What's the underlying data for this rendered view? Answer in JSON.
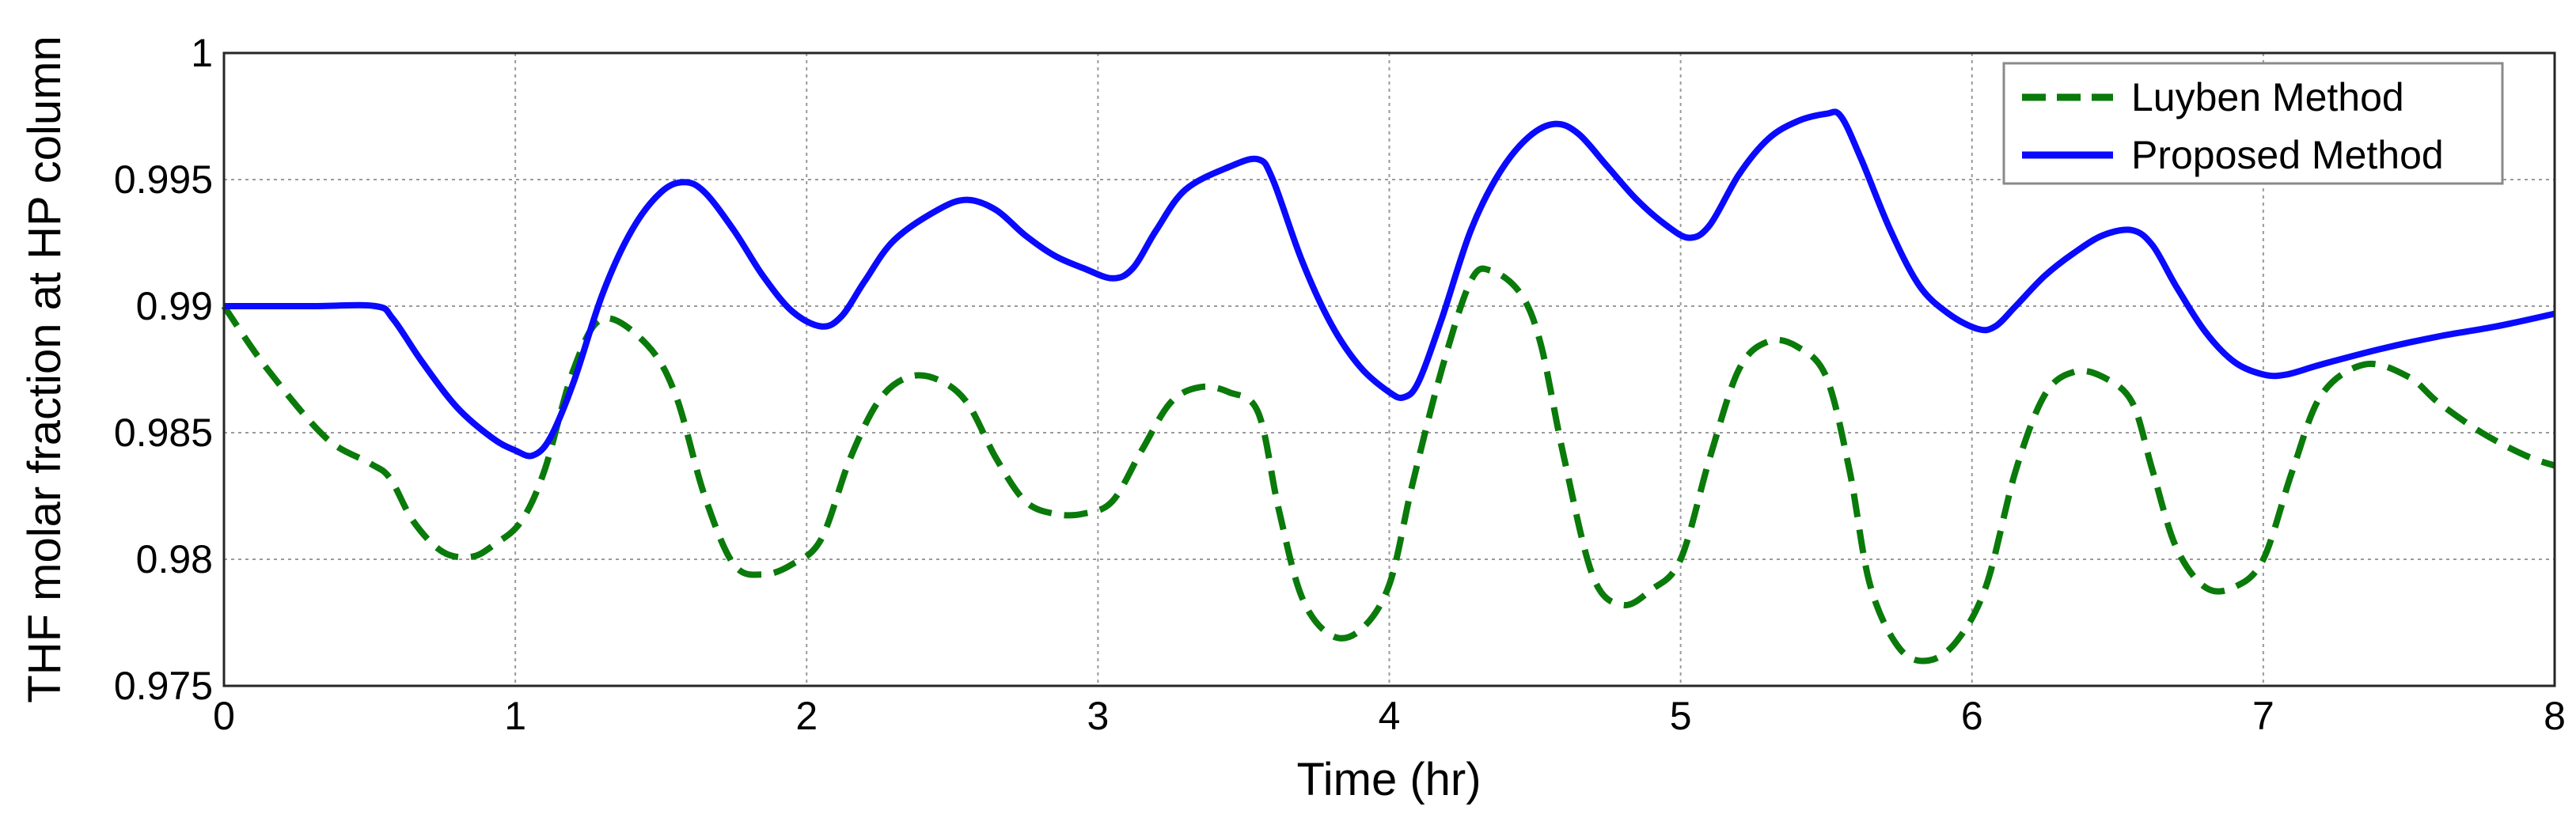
{
  "chart_data": {
    "type": "line",
    "xlabel": "Time (hr)",
    "ylabel": "THF molar fraction at HP column",
    "xlim": [
      0,
      8
    ],
    "ylim": [
      0.975,
      1
    ],
    "xticks": [
      0,
      1,
      2,
      3,
      4,
      5,
      6,
      7,
      8
    ],
    "yticks": [
      0.975,
      0.98,
      0.985,
      0.99,
      0.995,
      1
    ],
    "xtick_labels": [
      "0",
      "1",
      "2",
      "3",
      "4",
      "5",
      "6",
      "7",
      "8"
    ],
    "ytick_labels": [
      "0.975",
      "0.98",
      "0.985",
      "0.99",
      "0.995",
      "1"
    ],
    "grid": true,
    "grid_style": "dotted",
    "legend_position": "top-right",
    "series": [
      {
        "name": "Luyben Method",
        "color": "#0a7a0a",
        "line_style": "dashed",
        "points": [
          [
            0.0,
            0.99
          ],
          [
            0.15,
            0.9875
          ],
          [
            0.35,
            0.9848
          ],
          [
            0.5,
            0.9838
          ],
          [
            0.57,
            0.9832
          ],
          [
            0.65,
            0.9815
          ],
          [
            0.75,
            0.9803
          ],
          [
            0.85,
            0.9801
          ],
          [
            0.93,
            0.9806
          ],
          [
            1.02,
            0.9815
          ],
          [
            1.1,
            0.9835
          ],
          [
            1.2,
            0.9875
          ],
          [
            1.3,
            0.9895
          ],
          [
            1.45,
            0.9885
          ],
          [
            1.55,
            0.9865
          ],
          [
            1.65,
            0.9825
          ],
          [
            1.75,
            0.9798
          ],
          [
            1.85,
            0.9794
          ],
          [
            1.95,
            0.9798
          ],
          [
            2.05,
            0.9808
          ],
          [
            2.15,
            0.984
          ],
          [
            2.25,
            0.9863
          ],
          [
            2.35,
            0.9872
          ],
          [
            2.45,
            0.9871
          ],
          [
            2.55,
            0.9862
          ],
          [
            2.65,
            0.984
          ],
          [
            2.75,
            0.9823
          ],
          [
            2.85,
            0.9818
          ],
          [
            2.95,
            0.9818
          ],
          [
            3.05,
            0.9823
          ],
          [
            3.15,
            0.9843
          ],
          [
            3.25,
            0.9862
          ],
          [
            3.35,
            0.9868
          ],
          [
            3.45,
            0.9866
          ],
          [
            3.55,
            0.9858
          ],
          [
            3.62,
            0.982
          ],
          [
            3.7,
            0.9785
          ],
          [
            3.8,
            0.977
          ],
          [
            3.9,
            0.9772
          ],
          [
            4.0,
            0.979
          ],
          [
            4.08,
            0.983
          ],
          [
            4.18,
            0.9875
          ],
          [
            4.28,
            0.991
          ],
          [
            4.35,
            0.9914
          ],
          [
            4.45,
            0.9905
          ],
          [
            4.52,
            0.9885
          ],
          [
            4.6,
            0.984
          ],
          [
            4.7,
            0.9793
          ],
          [
            4.8,
            0.9782
          ],
          [
            4.9,
            0.9788
          ],
          [
            5.0,
            0.98
          ],
          [
            5.1,
            0.984
          ],
          [
            5.2,
            0.9875
          ],
          [
            5.3,
            0.9886
          ],
          [
            5.4,
            0.9884
          ],
          [
            5.5,
            0.9872
          ],
          [
            5.58,
            0.9835
          ],
          [
            5.65,
            0.979
          ],
          [
            5.75,
            0.9765
          ],
          [
            5.85,
            0.976
          ],
          [
            5.95,
            0.9768
          ],
          [
            6.05,
            0.979
          ],
          [
            6.15,
            0.9835
          ],
          [
            6.25,
            0.9865
          ],
          [
            6.35,
            0.9874
          ],
          [
            6.45,
            0.9872
          ],
          [
            6.55,
            0.9862
          ],
          [
            6.62,
            0.9835
          ],
          [
            6.7,
            0.9805
          ],
          [
            6.8,
            0.9789
          ],
          [
            6.9,
            0.9789
          ],
          [
            7.0,
            0.98
          ],
          [
            7.1,
            0.9835
          ],
          [
            7.2,
            0.9865
          ],
          [
            7.35,
            0.9877
          ],
          [
            7.5,
            0.9872
          ],
          [
            7.6,
            0.9862
          ],
          [
            7.75,
            0.985
          ],
          [
            7.9,
            0.9841
          ],
          [
            8.0,
            0.9837
          ]
        ]
      },
      {
        "name": "Proposed Method",
        "color": "#0a0aff",
        "line_style": "solid",
        "points": [
          [
            0.0,
            0.99
          ],
          [
            0.3,
            0.99
          ],
          [
            0.52,
            0.99
          ],
          [
            0.58,
            0.9895
          ],
          [
            0.68,
            0.9878
          ],
          [
            0.8,
            0.986
          ],
          [
            0.92,
            0.9848
          ],
          [
            1.0,
            0.9843
          ],
          [
            1.06,
            0.9841
          ],
          [
            1.12,
            0.9848
          ],
          [
            1.2,
            0.987
          ],
          [
            1.3,
            0.9905
          ],
          [
            1.4,
            0.993
          ],
          [
            1.5,
            0.9945
          ],
          [
            1.58,
            0.9949
          ],
          [
            1.65,
            0.9945
          ],
          [
            1.75,
            0.993
          ],
          [
            1.85,
            0.9912
          ],
          [
            1.95,
            0.9898
          ],
          [
            2.05,
            0.9892
          ],
          [
            2.12,
            0.9896
          ],
          [
            2.2,
            0.991
          ],
          [
            2.3,
            0.9926
          ],
          [
            2.45,
            0.9938
          ],
          [
            2.55,
            0.9942
          ],
          [
            2.65,
            0.9938
          ],
          [
            2.75,
            0.9928
          ],
          [
            2.85,
            0.992
          ],
          [
            2.95,
            0.9915
          ],
          [
            3.05,
            0.9911
          ],
          [
            3.12,
            0.9915
          ],
          [
            3.2,
            0.993
          ],
          [
            3.3,
            0.9946
          ],
          [
            3.45,
            0.9955
          ],
          [
            3.55,
            0.9958
          ],
          [
            3.6,
            0.995
          ],
          [
            3.7,
            0.9918
          ],
          [
            3.8,
            0.9893
          ],
          [
            3.9,
            0.9876
          ],
          [
            4.0,
            0.9866
          ],
          [
            4.05,
            0.9864
          ],
          [
            4.1,
            0.987
          ],
          [
            4.18,
            0.9895
          ],
          [
            4.28,
            0.993
          ],
          [
            4.38,
            0.9953
          ],
          [
            4.48,
            0.9967
          ],
          [
            4.57,
            0.9972
          ],
          [
            4.65,
            0.9968
          ],
          [
            4.75,
            0.9955
          ],
          [
            4.85,
            0.9942
          ],
          [
            4.95,
            0.9932
          ],
          [
            5.03,
            0.9927
          ],
          [
            5.1,
            0.9932
          ],
          [
            5.2,
            0.9952
          ],
          [
            5.3,
            0.9966
          ],
          [
            5.4,
            0.9973
          ],
          [
            5.5,
            0.9976
          ],
          [
            5.55,
            0.9975
          ],
          [
            5.62,
            0.9958
          ],
          [
            5.72,
            0.993
          ],
          [
            5.82,
            0.9908
          ],
          [
            5.92,
            0.9897
          ],
          [
            6.02,
            0.9891
          ],
          [
            6.08,
            0.9892
          ],
          [
            6.15,
            0.99
          ],
          [
            6.25,
            0.9912
          ],
          [
            6.35,
            0.9921
          ],
          [
            6.45,
            0.9928
          ],
          [
            6.55,
            0.993
          ],
          [
            6.62,
            0.9924
          ],
          [
            6.7,
            0.9908
          ],
          [
            6.8,
            0.989
          ],
          [
            6.9,
            0.9878
          ],
          [
            7.0,
            0.9873
          ],
          [
            7.08,
            0.9873
          ],
          [
            7.2,
            0.9877
          ],
          [
            7.4,
            0.9883
          ],
          [
            7.6,
            0.9888
          ],
          [
            7.8,
            0.9892
          ],
          [
            8.0,
            0.9897
          ]
        ]
      }
    ]
  }
}
